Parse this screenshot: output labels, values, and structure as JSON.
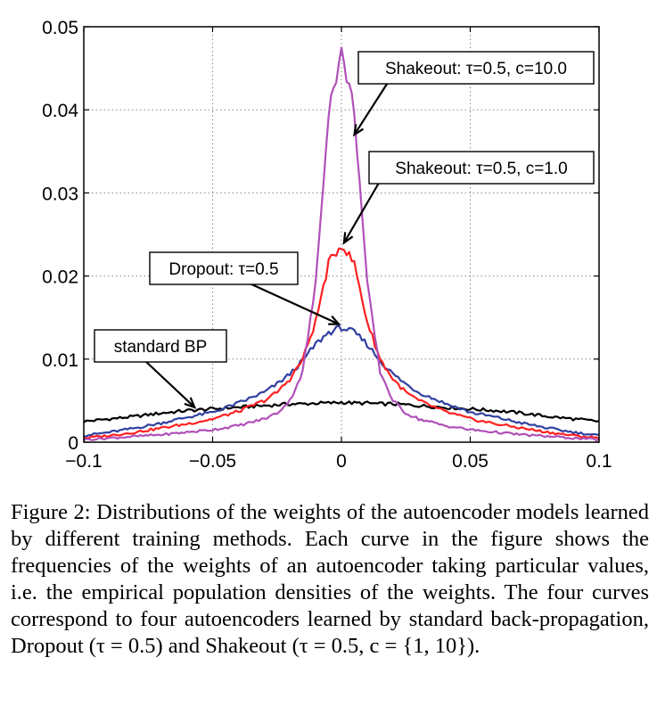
{
  "chart_data": {
    "type": "line",
    "title": "",
    "xlabel": "",
    "ylabel": "",
    "xlim": [
      -0.1,
      0.1
    ],
    "ylim": [
      0,
      0.05
    ],
    "x_ticks": [
      -0.1,
      -0.05,
      0,
      0.05,
      0.1
    ],
    "x_tick_labels": [
      "−0.1",
      "−0.05",
      "0",
      "0.05",
      "0.1"
    ],
    "y_ticks": [
      0,
      0.01,
      0.02,
      0.03,
      0.04,
      0.05
    ],
    "y_tick_labels": [
      "0",
      "0.01",
      "0.02",
      "0.03",
      "0.04",
      "0.05"
    ],
    "grid": true,
    "x": [
      -0.1,
      -0.09,
      -0.08,
      -0.07,
      -0.06,
      -0.05,
      -0.04,
      -0.03,
      -0.025,
      -0.02,
      -0.015,
      -0.01,
      -0.005,
      0,
      0.005,
      0.01,
      0.015,
      0.02,
      0.025,
      0.03,
      0.04,
      0.05,
      0.06,
      0.07,
      0.08,
      0.09,
      0.1
    ],
    "series": [
      {
        "name": "standard BP",
        "color": "#000000",
        "values": [
          0.0025,
          0.0028,
          0.0031,
          0.0035,
          0.0038,
          0.004,
          0.0042,
          0.0044,
          0.0045,
          0.0046,
          0.0046,
          0.0047,
          0.0047,
          0.0048,
          0.0047,
          0.0047,
          0.0046,
          0.0046,
          0.0045,
          0.0044,
          0.0042,
          0.004,
          0.0038,
          0.0035,
          0.0031,
          0.0028,
          0.0025
        ]
      },
      {
        "name": "Dropout: τ=0.5",
        "color": "#3040a0",
        "values": [
          0.0008,
          0.0012,
          0.0017,
          0.0023,
          0.003,
          0.0036,
          0.0047,
          0.006,
          0.007,
          0.0082,
          0.0098,
          0.0118,
          0.0132,
          0.0138,
          0.0132,
          0.0118,
          0.0098,
          0.0082,
          0.007,
          0.006,
          0.0047,
          0.0036,
          0.003,
          0.0023,
          0.0017,
          0.0012,
          0.0008
        ]
      },
      {
        "name": "Shakeout: τ=0.5, c=1.0",
        "color": "#ff2020",
        "values": [
          0.0005,
          0.0008,
          0.0012,
          0.0017,
          0.0022,
          0.0028,
          0.0037,
          0.005,
          0.006,
          0.0076,
          0.01,
          0.0145,
          0.0215,
          0.0238,
          0.0215,
          0.0145,
          0.01,
          0.0076,
          0.006,
          0.005,
          0.0037,
          0.0028,
          0.0022,
          0.0017,
          0.0012,
          0.0008,
          0.0005
        ]
      },
      {
        "name": "Shakeout: τ=0.5, c=10.0",
        "color": "#b050b8",
        "values": [
          0.0003,
          0.0005,
          0.0007,
          0.0009,
          0.0012,
          0.0015,
          0.002,
          0.0028,
          0.0035,
          0.005,
          0.0085,
          0.019,
          0.04,
          0.0468,
          0.04,
          0.019,
          0.0085,
          0.005,
          0.0035,
          0.0028,
          0.002,
          0.0015,
          0.0012,
          0.0009,
          0.0007,
          0.0005,
          0.0003
        ]
      }
    ],
    "annotations": [
      {
        "text": "Shakeout: τ=0.5, c=10.0",
        "points_to": [
          0.005,
          0.037
        ]
      },
      {
        "text": "Shakeout: τ=0.5, c=1.0",
        "points_to": [
          0.001,
          0.024
        ]
      },
      {
        "text": "Dropout: τ=0.5",
        "points_to": [
          -0.001,
          0.0142
        ]
      },
      {
        "text": "standard BP",
        "points_to": [
          -0.057,
          0.0042
        ]
      }
    ]
  },
  "caption": "Figure 2: Distributions of the weights of the autoencoder models learned by different training methods. Each curve in the figure shows the frequencies of the weights of an autoencoder taking particular values, i.e. the empirical population densities of the weights. The four curves correspond to four autoencoders learned by standard back-propagation, Dropout (τ = 0.5) and Shakeout (τ = 0.5, c = {1, 10})."
}
